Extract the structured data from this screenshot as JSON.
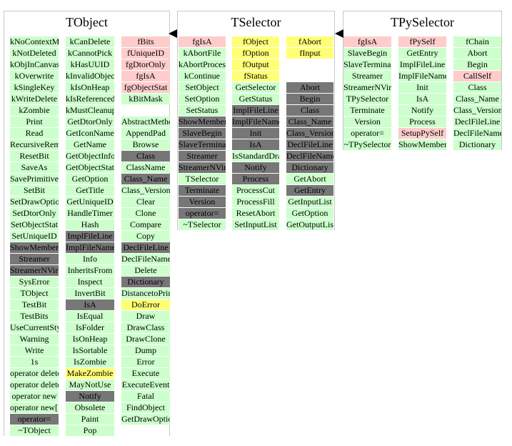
{
  "colors": {
    "green": "#ccffcc",
    "pink": "#ffcccc",
    "yellow": "#ffff77",
    "dark": "#777777",
    "frame": "#c8c8c8"
  },
  "classes": [
    {
      "name": "TObject",
      "columns": [
        {
          "key": "tobject-col-1",
          "cells": [
            {
              "t": "kNoContextMenu",
              "c": "g"
            },
            {
              "t": "kNotDeleted",
              "c": "g"
            },
            {
              "t": "kObjInCanvas",
              "c": "g"
            },
            {
              "t": "kOverwrite",
              "c": "g"
            },
            {
              "t": "kSingleKey",
              "c": "g"
            },
            {
              "t": "kWriteDelete",
              "c": "g"
            },
            {
              "t": "kZombie",
              "c": "g"
            },
            {
              "t": "Print",
              "c": "g"
            },
            {
              "t": "Read",
              "c": "g"
            },
            {
              "t": "RecursiveRemove",
              "c": "g"
            },
            {
              "t": "ResetBit",
              "c": "g"
            },
            {
              "t": "SaveAs",
              "c": "g"
            },
            {
              "t": "SavePrimitive",
              "c": "g"
            },
            {
              "t": "SetBit",
              "c": "g"
            },
            {
              "t": "SetDrawOption",
              "c": "g"
            },
            {
              "t": "SetDtorOnly",
              "c": "g"
            },
            {
              "t": "SetObjectStat",
              "c": "g"
            },
            {
              "t": "SetUniqueID",
              "c": "g"
            },
            {
              "t": "ShowMembers",
              "c": "d"
            },
            {
              "t": "Streamer",
              "c": "d"
            },
            {
              "t": "StreamerNVirtual",
              "c": "d"
            },
            {
              "t": "SysError",
              "c": "g"
            },
            {
              "t": "TObject",
              "c": "g"
            },
            {
              "t": "TestBit",
              "c": "g"
            },
            {
              "t": "TestBits",
              "c": "g"
            },
            {
              "t": "UseCurrentStyle",
              "c": "g"
            },
            {
              "t": "Warning",
              "c": "g"
            },
            {
              "t": "Write",
              "c": "g"
            },
            {
              "t": "1s",
              "c": "g"
            },
            {
              "t": "operator delete",
              "c": "g"
            },
            {
              "t": "operator delete[]",
              "c": "g"
            },
            {
              "t": "operator new",
              "c": "g"
            },
            {
              "t": "operator new[]",
              "c": "g"
            },
            {
              "t": "operator=",
              "c": "d"
            },
            {
              "t": "~TObject",
              "c": "g"
            }
          ]
        },
        {
          "key": "tobject-col-2",
          "cells": [
            {
              "t": "kCanDelete",
              "c": "g"
            },
            {
              "t": "kCannotPick",
              "c": "g"
            },
            {
              "t": "kHasUUID",
              "c": "g"
            },
            {
              "t": "kInvalidObject",
              "c": "g"
            },
            {
              "t": "kIsOnHeap",
              "c": "g"
            },
            {
              "t": "kIsReferenced",
              "c": "g"
            },
            {
              "t": "kMustCleanup",
              "c": "g"
            },
            {
              "t": "GetDtorOnly",
              "c": "g"
            },
            {
              "t": "GetIconName",
              "c": "g"
            },
            {
              "t": "GetName",
              "c": "g"
            },
            {
              "t": "GetObjectInfo",
              "c": "g"
            },
            {
              "t": "GetObjectStat",
              "c": "g"
            },
            {
              "t": "GetOption",
              "c": "g"
            },
            {
              "t": "GetTitle",
              "c": "g"
            },
            {
              "t": "GetUniqueID",
              "c": "g"
            },
            {
              "t": "HandleTimer",
              "c": "g"
            },
            {
              "t": "Hash",
              "c": "g"
            },
            {
              "t": "ImplFileLine",
              "c": "d"
            },
            {
              "t": "ImplFileName",
              "c": "d"
            },
            {
              "t": "Info",
              "c": "g"
            },
            {
              "t": "InheritsFrom",
              "c": "g"
            },
            {
              "t": "Inspect",
              "c": "g"
            },
            {
              "t": "InvertBit",
              "c": "g"
            },
            {
              "t": "IsA",
              "c": "d"
            },
            {
              "t": "IsEqual",
              "c": "g"
            },
            {
              "t": "IsFolder",
              "c": "g"
            },
            {
              "t": "IsOnHeap",
              "c": "g"
            },
            {
              "t": "IsSortable",
              "c": "g"
            },
            {
              "t": "IsZombie",
              "c": "g"
            },
            {
              "t": "MakeZombie",
              "c": "y"
            },
            {
              "t": "MayNotUse",
              "c": "g"
            },
            {
              "t": "Notify",
              "c": "d"
            },
            {
              "t": "Obsolete",
              "c": "g"
            },
            {
              "t": "Paint",
              "c": "g"
            },
            {
              "t": "Pop",
              "c": "g"
            }
          ]
        },
        {
          "key": "tobject-col-3",
          "cells": [
            {
              "t": "fBits",
              "c": "p"
            },
            {
              "t": "fUniqueID",
              "c": "p"
            },
            {
              "t": "fgDtorOnly",
              "c": "p"
            },
            {
              "t": "fgIsA",
              "c": "p"
            },
            {
              "t": "fgObjectStat",
              "c": "p"
            },
            {
              "t": "kBitMask",
              "c": "g"
            },
            {
              "t": "",
              "c": ""
            },
            {
              "t": "AbstractMethod",
              "c": "g"
            },
            {
              "t": "AppendPad",
              "c": "g"
            },
            {
              "t": "Browse",
              "c": "g"
            },
            {
              "t": "Class",
              "c": "d"
            },
            {
              "t": "ClassName",
              "c": "g"
            },
            {
              "t": "Class_Name",
              "c": "d"
            },
            {
              "t": "Class_Version",
              "c": "g"
            },
            {
              "t": "Clear",
              "c": "g"
            },
            {
              "t": "Clone",
              "c": "g"
            },
            {
              "t": "Compare",
              "c": "g"
            },
            {
              "t": "Copy",
              "c": "g"
            },
            {
              "t": "DeclFileLine",
              "c": "d"
            },
            {
              "t": "DeclFileName",
              "c": "g"
            },
            {
              "t": "Delete",
              "c": "g"
            },
            {
              "t": "Dictionary",
              "c": "d"
            },
            {
              "t": "DistancetoPrimitive",
              "c": "g"
            },
            {
              "t": "DoError",
              "c": "y"
            },
            {
              "t": "Draw",
              "c": "g"
            },
            {
              "t": "DrawClass",
              "c": "g"
            },
            {
              "t": "DrawClone",
              "c": "g"
            },
            {
              "t": "Dump",
              "c": "g"
            },
            {
              "t": "Error",
              "c": "g"
            },
            {
              "t": "Execute",
              "c": "g"
            },
            {
              "t": "ExecuteEvent",
              "c": "g"
            },
            {
              "t": "Fatal",
              "c": "g"
            },
            {
              "t": "FindObject",
              "c": "g"
            },
            {
              "t": "GetDrawOption",
              "c": "g"
            }
          ]
        }
      ]
    },
    {
      "name": "TSelector",
      "columns": [
        {
          "key": "tselector-col-1",
          "cells": [
            {
              "t": "fgIsA",
              "c": "p"
            },
            {
              "t": "kAbortFile",
              "c": "g"
            },
            {
              "t": "kAbortProcess",
              "c": "g"
            },
            {
              "t": "kContinue",
              "c": "g"
            },
            {
              "t": "SetObject",
              "c": "g"
            },
            {
              "t": "SetOption",
              "c": "g"
            },
            {
              "t": "SetStatus",
              "c": "g"
            },
            {
              "t": "ShowMembers",
              "c": "d"
            },
            {
              "t": "SlaveBegin",
              "c": "d"
            },
            {
              "t": "SlaveTerminate",
              "c": "d"
            },
            {
              "t": "Streamer",
              "c": "d"
            },
            {
              "t": "StreamerNVirtual",
              "c": "d"
            },
            {
              "t": "TSelector",
              "c": "g"
            },
            {
              "t": "Terminate",
              "c": "d"
            },
            {
              "t": "Version",
              "c": "d"
            },
            {
              "t": "operator=",
              "c": "d"
            },
            {
              "t": "~TSelector",
              "c": "g"
            }
          ]
        },
        {
          "key": "tselector-col-2",
          "cells": [
            {
              "t": "fObject",
              "c": "y"
            },
            {
              "t": "fOption",
              "c": "y"
            },
            {
              "t": "fOutput",
              "c": "y"
            },
            {
              "t": "fStatus",
              "c": "y"
            },
            {
              "t": "GetSelector",
              "c": "g"
            },
            {
              "t": "GetStatus",
              "c": "g"
            },
            {
              "t": "ImplFileLine",
              "c": "d"
            },
            {
              "t": "ImplFileName",
              "c": "d"
            },
            {
              "t": "Init",
              "c": "d"
            },
            {
              "t": "IsA",
              "c": "d"
            },
            {
              "t": "IsStandardDraw",
              "c": "g"
            },
            {
              "t": "Notify",
              "c": "d"
            },
            {
              "t": "Process",
              "c": "d"
            },
            {
              "t": "ProcessCut",
              "c": "g"
            },
            {
              "t": "ProcessFill",
              "c": "g"
            },
            {
              "t": "ResetAbort",
              "c": "g"
            },
            {
              "t": "SetInputList",
              "c": "g"
            }
          ]
        },
        {
          "key": "tselector-col-3",
          "cells": [
            {
              "t": "fAbort",
              "c": "y"
            },
            {
              "t": "fInput",
              "c": "y"
            },
            {
              "t": "",
              "c": ""
            },
            {
              "t": "",
              "c": ""
            },
            {
              "t": "Abort",
              "c": "d"
            },
            {
              "t": "Begin",
              "c": "d"
            },
            {
              "t": "Class",
              "c": "d"
            },
            {
              "t": "Class_Name",
              "c": "d"
            },
            {
              "t": "Class_Version",
              "c": "d"
            },
            {
              "t": "DeclFileLine",
              "c": "d"
            },
            {
              "t": "DeclFileName",
              "c": "d"
            },
            {
              "t": "Dictionary",
              "c": "d"
            },
            {
              "t": "GetAbort",
              "c": "g"
            },
            {
              "t": "GetEntry",
              "c": "d"
            },
            {
              "t": "GetInputList",
              "c": "g"
            },
            {
              "t": "GetOption",
              "c": "g"
            },
            {
              "t": "GetOutputList",
              "c": "g"
            }
          ]
        }
      ]
    },
    {
      "name": "TPySelector",
      "columns": [
        {
          "key": "tpyselector-col-1",
          "cells": [
            {
              "t": "fgIsA",
              "c": "p"
            },
            {
              "t": "SlaveBegin",
              "c": "g"
            },
            {
              "t": "SlaveTerminate",
              "c": "g"
            },
            {
              "t": "Streamer",
              "c": "g"
            },
            {
              "t": "StreamerNVirtual",
              "c": "g"
            },
            {
              "t": "TPySelector",
              "c": "g"
            },
            {
              "t": "Terminate",
              "c": "g"
            },
            {
              "t": "Version",
              "c": "g"
            },
            {
              "t": "operator=",
              "c": "g"
            },
            {
              "t": "~TPySelector",
              "c": "g"
            }
          ]
        },
        {
          "key": "tpyselector-col-2",
          "cells": [
            {
              "t": "fPySelf",
              "c": "p"
            },
            {
              "t": "GetEntry",
              "c": "g"
            },
            {
              "t": "ImplFileLine",
              "c": "g"
            },
            {
              "t": "ImplFileName",
              "c": "g"
            },
            {
              "t": "Init",
              "c": "g"
            },
            {
              "t": "IsA",
              "c": "g"
            },
            {
              "t": "Notify",
              "c": "g"
            },
            {
              "t": "Process",
              "c": "g"
            },
            {
              "t": "SetupPySelf",
              "c": "p"
            },
            {
              "t": "ShowMembers",
              "c": "g"
            }
          ]
        },
        {
          "key": "tpyselector-col-3",
          "cells": [
            {
              "t": "fChain",
              "c": "g"
            },
            {
              "t": "Abort",
              "c": "g"
            },
            {
              "t": "Begin",
              "c": "g"
            },
            {
              "t": "CallSelf",
              "c": "p"
            },
            {
              "t": "Class",
              "c": "g"
            },
            {
              "t": "Class_Name",
              "c": "g"
            },
            {
              "t": "Class_Version",
              "c": "g"
            },
            {
              "t": "DeclFileLine",
              "c": "g"
            },
            {
              "t": "DeclFileName",
              "c": "g"
            },
            {
              "t": "Dictionary",
              "c": "g"
            }
          ]
        }
      ]
    }
  ]
}
